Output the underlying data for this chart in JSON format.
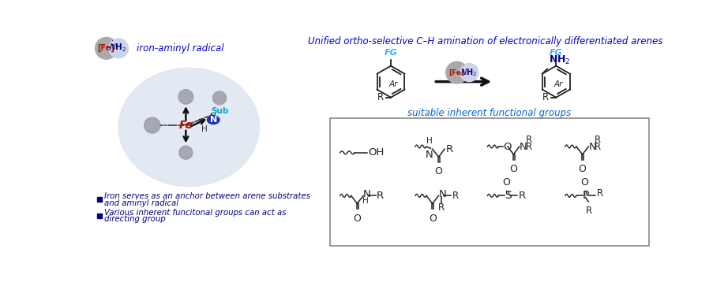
{
  "title": "Unified ortho-selective C–H amination of electronically differentiated arenes",
  "title_color": "#0000cc",
  "header_desc": "iron-aminyl radical",
  "header_desc_color": "#0000cc",
  "bullet_color": "#000080",
  "bullet1_line1": "Iron serves as an anchor between arene substrates",
  "bullet1_line2": "and aminyl radical",
  "bullet2_line1": "Various inherent funcitonal groups can act as",
  "bullet2_line2": "directing group",
  "suitable_label": "suitable inherent functional groups",
  "suitable_color": "#0066cc",
  "fe_color": "#aa1100",
  "n_color": "#000080",
  "fg_color": "#44aaff",
  "gray1": "#aaaaaa",
  "gray2": "#ccd4e8",
  "big_ellipse_color": "#dde6f0",
  "sub_color": "#00aacc",
  "bg": "#ffffff"
}
